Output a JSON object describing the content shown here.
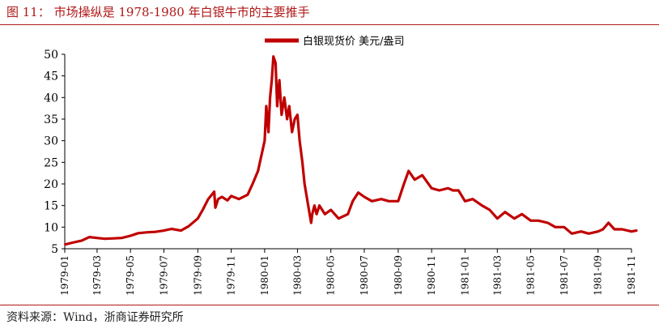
{
  "figure": {
    "title": "图 11：   市场操纵是 1978-1980 年白银牛市的主要推手",
    "source": "资料来源：Wind，浙商证券研究所"
  },
  "colors": {
    "accent": "#b01818",
    "series": "#c00000"
  },
  "chart_data": {
    "type": "line",
    "title": "",
    "xlabel": "",
    "ylabel": "",
    "ylim": [
      5,
      50
    ],
    "yticks": [
      5,
      10,
      15,
      20,
      25,
      30,
      35,
      40,
      45,
      50
    ],
    "xlim": [
      "1979-01",
      "1981-11"
    ],
    "xticks": [
      "1979-01",
      "1979-03",
      "1979-05",
      "1979-07",
      "1979-09",
      "1979-11",
      "1980-01",
      "1980-03",
      "1980-05",
      "1980-07",
      "1980-09",
      "1980-11",
      "1981-01",
      "1981-03",
      "1981-05",
      "1981-07",
      "1981-09",
      "1981-11"
    ],
    "grid": false,
    "legend_position": "top-right",
    "series": [
      {
        "name": "白银现货价 美元/盎司",
        "x": [
          "1979-01-02",
          "1979-01-15",
          "1979-02-01",
          "1979-02-15",
          "1979-03-01",
          "1979-03-15",
          "1979-04-01",
          "1979-04-15",
          "1979-05-01",
          "1979-05-15",
          "1979-06-01",
          "1979-06-15",
          "1979-07-01",
          "1979-07-15",
          "1979-08-01",
          "1979-08-15",
          "1979-09-01",
          "1979-09-10",
          "1979-09-20",
          "1979-10-01",
          "1979-10-03",
          "1979-10-08",
          "1979-10-15",
          "1979-10-25",
          "1979-11-01",
          "1979-11-15",
          "1979-12-01",
          "1979-12-10",
          "1979-12-20",
          "1980-01-01",
          "1980-01-04",
          "1980-01-08",
          "1980-01-11",
          "1980-01-14",
          "1980-01-17",
          "1980-01-21",
          "1980-01-24",
          "1980-01-28",
          "1980-02-01",
          "1980-02-06",
          "1980-02-11",
          "1980-02-15",
          "1980-02-20",
          "1980-02-25",
          "1980-03-01",
          "1980-03-05",
          "1980-03-10",
          "1980-03-14",
          "1980-03-18",
          "1980-03-22",
          "1980-03-26",
          "1980-03-28",
          "1980-04-01",
          "1980-04-05",
          "1980-04-10",
          "1980-04-15",
          "1980-04-20",
          "1980-05-01",
          "1980-05-15",
          "1980-06-01",
          "1980-06-10",
          "1980-06-20",
          "1980-07-01",
          "1980-07-15",
          "1980-08-01",
          "1980-08-15",
          "1980-09-01",
          "1980-09-10",
          "1980-09-20",
          "1980-10-01",
          "1980-10-15",
          "1980-11-01",
          "1980-11-15",
          "1980-12-01",
          "1980-12-10",
          "1980-12-20",
          "1981-01-01",
          "1981-01-15",
          "1981-02-01",
          "1981-02-15",
          "1981-03-01",
          "1981-03-15",
          "1981-04-01",
          "1981-04-15",
          "1981-05-01",
          "1981-05-15",
          "1981-06-01",
          "1981-06-15",
          "1981-07-01",
          "1981-07-15",
          "1981-08-01",
          "1981-08-15",
          "1981-09-01",
          "1981-09-10",
          "1981-09-20",
          "1981-10-01",
          "1981-10-15",
          "1981-11-01",
          "1981-11-10"
        ],
        "values": [
          6.0,
          6.4,
          6.9,
          7.7,
          7.5,
          7.3,
          7.4,
          7.5,
          8.0,
          8.6,
          8.8,
          8.9,
          9.2,
          9.6,
          9.2,
          10.2,
          12.0,
          14.0,
          16.5,
          18.2,
          14.5,
          16.5,
          17.0,
          16.2,
          17.2,
          16.5,
          17.5,
          20.0,
          23.0,
          30.0,
          38.0,
          32.0,
          40.0,
          44.0,
          49.5,
          48.0,
          38.0,
          44.0,
          36.0,
          40.0,
          35.0,
          38.0,
          32.0,
          35.0,
          36.0,
          30.0,
          25.0,
          20.0,
          17.0,
          14.0,
          11.0,
          13.0,
          15.0,
          13.0,
          15.0,
          14.0,
          13.0,
          14.0,
          12.0,
          13.0,
          16.0,
          18.0,
          17.0,
          16.0,
          16.5,
          16.0,
          16.0,
          19.5,
          23.0,
          21.0,
          22.0,
          19.0,
          18.5,
          19.0,
          18.5,
          18.5,
          16.0,
          16.5,
          15.0,
          14.0,
          12.0,
          13.5,
          12.0,
          13.0,
          11.5,
          11.5,
          11.0,
          10.0,
          10.0,
          8.5,
          9.0,
          8.5,
          9.0,
          9.5,
          11.0,
          9.5,
          9.5,
          9.0,
          9.2
        ]
      }
    ]
  }
}
